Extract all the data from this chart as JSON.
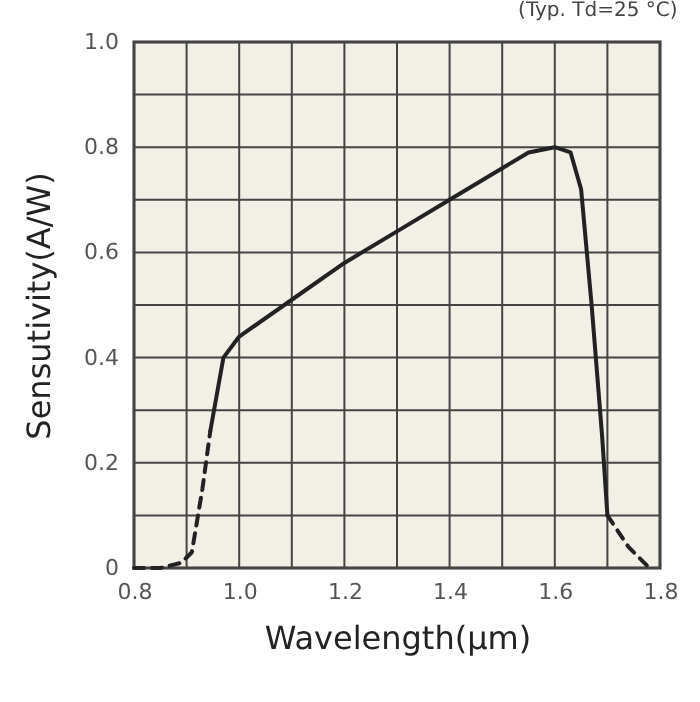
{
  "chart_data": {
    "type": "line",
    "xlabel": "Wavelength(μm)",
    "ylabel": "Sensutivity(A/W)",
    "annotations": [
      "(Typ. Td=25 °C)"
    ],
    "xlim": [
      0.8,
      1.8
    ],
    "xticks": [
      0.8,
      {
        "value": 0.9,
        "label": null
      },
      {
        "value": 1.0,
        "label": "1.0"
      },
      {
        "value": 1.1,
        "label": null
      },
      1.2,
      {
        "value": 1.3,
        "label": null
      },
      1.4,
      {
        "value": 1.5,
        "label": null
      },
      1.6,
      {
        "value": 1.7,
        "label": null
      },
      1.8
    ],
    "ylim": [
      0,
      1
    ],
    "yticks": [
      0,
      {
        "value": 0.1,
        "label": null
      },
      0.2,
      {
        "value": 0.3,
        "label": null
      },
      0.4,
      {
        "value": 0.5,
        "label": null
      },
      0.6,
      {
        "value": 0.7,
        "label": null
      },
      0.8,
      {
        "value": 0.9,
        "label": null
      },
      {
        "value": 1.0,
        "label": "1.0"
      }
    ],
    "grid": true,
    "series": [
      {
        "color": "#222222",
        "line_style": "dashed",
        "x": [
          0.8,
          0.85,
          0.89,
          0.91,
          0.93,
          0.945
        ],
        "values": [
          0,
          0,
          0.01,
          0.03,
          0.15,
          0.26
        ]
      },
      {
        "color": "#222222",
        "line_style": "solid",
        "x": [
          0.945,
          0.97,
          1.0,
          1.1,
          1.2,
          1.3,
          1.4,
          1.5,
          1.55,
          1.6,
          1.63,
          1.65,
          1.67,
          1.69,
          1.7
        ],
        "values": [
          0.26,
          0.4,
          0.44,
          0.51,
          0.58,
          0.64,
          0.7,
          0.76,
          0.79,
          0.8,
          0.79,
          0.72,
          0.5,
          0.25,
          0.1
        ]
      },
      {
        "color": "#222222",
        "line_style": "dashed",
        "x": [
          1.7,
          1.74,
          1.78
        ],
        "values": [
          0.1,
          0.04,
          0
        ]
      }
    ]
  }
}
